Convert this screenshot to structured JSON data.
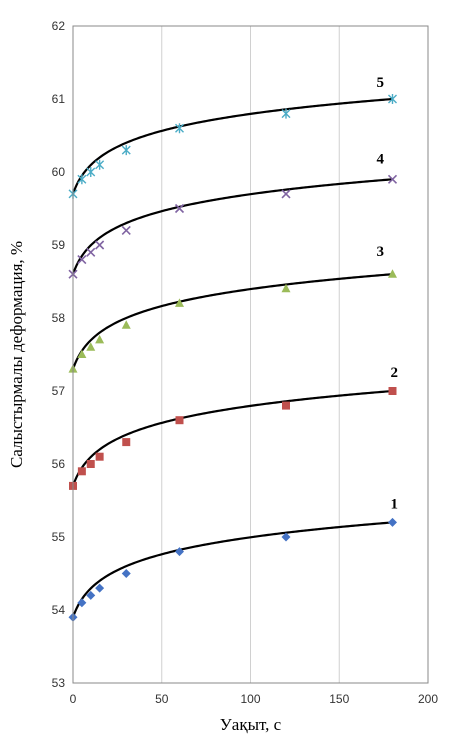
{
  "chart_data": {
    "type": "scatter",
    "title": "",
    "xlabel": "Уақыт, с",
    "ylabel": "Салыстырмалы деформация, %",
    "xlim": [
      0,
      200
    ],
    "ylim": [
      53,
      62
    ],
    "x_ticks": [
      "0",
      "50",
      "100",
      "150",
      "200"
    ],
    "y_ticks": [
      "53",
      "54",
      "55",
      "56",
      "57",
      "58",
      "59",
      "60",
      "61",
      "62"
    ],
    "grid": "vertical",
    "series": [
      {
        "name": "1",
        "marker": "diamond",
        "color": "#4472C4",
        "x": [
          0,
          5,
          10,
          15,
          30,
          60,
          120,
          180
        ],
        "y": [
          53.9,
          54.1,
          54.2,
          54.3,
          54.5,
          54.8,
          55.0,
          55.2
        ]
      },
      {
        "name": "2",
        "marker": "square",
        "color": "#C0504D",
        "x": [
          0,
          5,
          10,
          15,
          30,
          60,
          120,
          180
        ],
        "y": [
          55.7,
          55.9,
          56.0,
          56.1,
          56.3,
          56.6,
          56.8,
          57.0
        ]
      },
      {
        "name": "3",
        "marker": "triangle",
        "color": "#9BBB59",
        "x": [
          0,
          5,
          10,
          15,
          30,
          60,
          120,
          180
        ],
        "y": [
          57.3,
          57.5,
          57.6,
          57.7,
          57.9,
          58.2,
          58.4,
          58.6
        ]
      },
      {
        "name": "4",
        "marker": "x",
        "color": "#8064A2",
        "x": [
          0,
          5,
          10,
          15,
          30,
          60,
          120,
          180
        ],
        "y": [
          58.6,
          58.8,
          58.9,
          59.0,
          59.2,
          59.5,
          59.7,
          59.9
        ]
      },
      {
        "name": "5",
        "marker": "star",
        "color": "#4BACC6",
        "x": [
          0,
          5,
          10,
          15,
          30,
          60,
          120,
          180
        ],
        "y": [
          59.7,
          59.9,
          60.0,
          60.1,
          60.3,
          60.6,
          60.8,
          61.0
        ]
      }
    ],
    "trendlines": [
      {
        "series": "1",
        "y0": 53.9,
        "y180": 55.2,
        "color": "#000000"
      },
      {
        "series": "2",
        "y0": 55.7,
        "y180": 57.0,
        "color": "#000000"
      },
      {
        "series": "3",
        "y0": 57.3,
        "y180": 58.6,
        "color": "#000000"
      },
      {
        "series": "4",
        "y0": 58.6,
        "y180": 59.9,
        "color": "#000000"
      },
      {
        "series": "5",
        "y0": 59.7,
        "y180": 61.0,
        "color": "#000000"
      }
    ]
  }
}
